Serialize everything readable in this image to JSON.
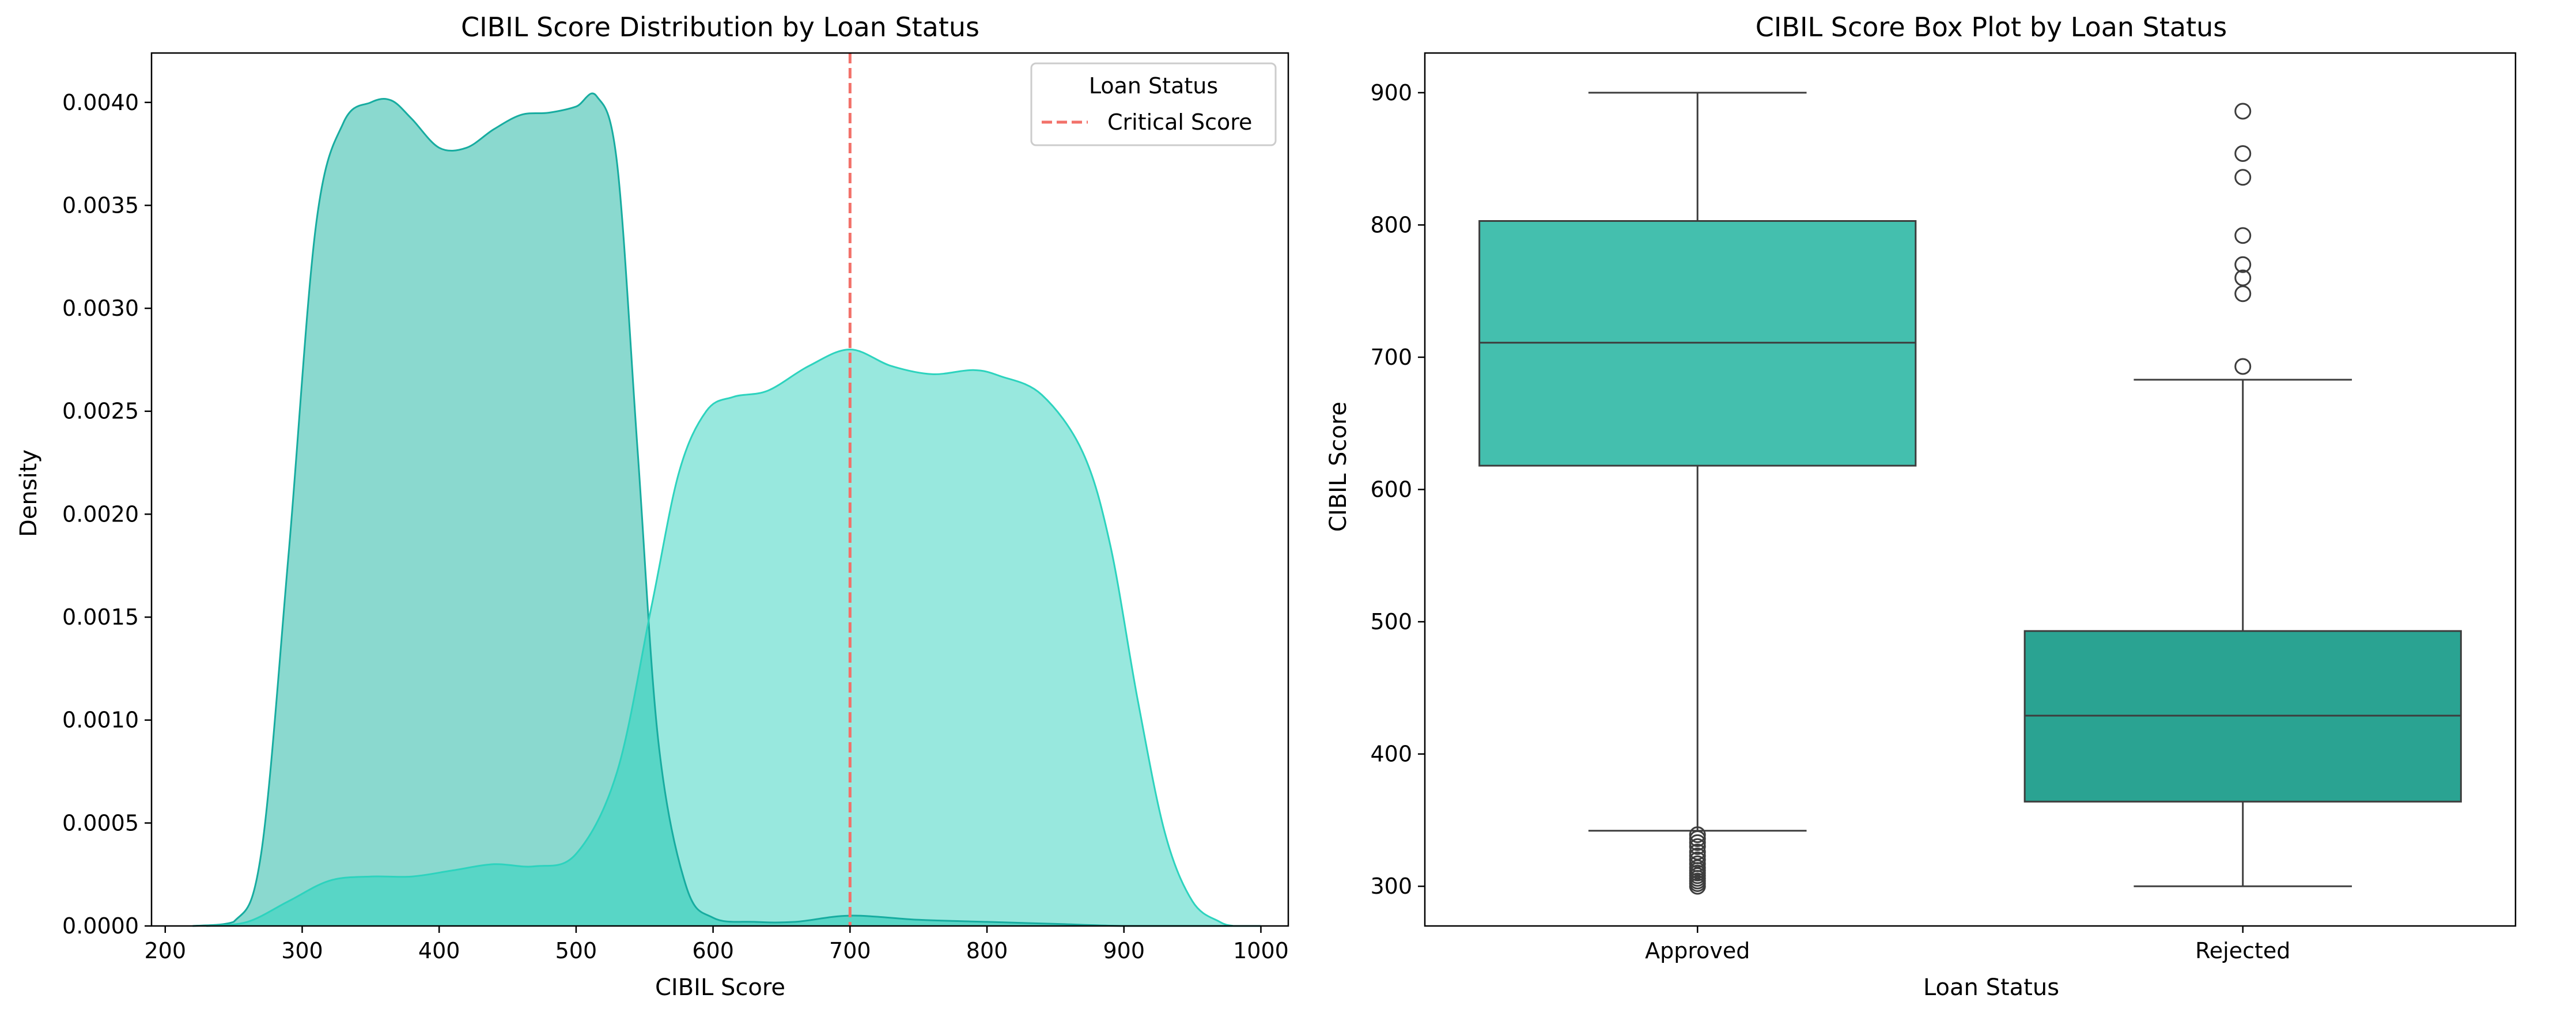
{
  "chart_data": [
    {
      "type": "area",
      "title": "CIBIL Score Distribution by Loan Status",
      "xlabel": "CIBIL Score",
      "ylabel": "Density",
      "xlim": [
        190,
        1020
      ],
      "ylim": [
        0,
        0.00424
      ],
      "xticks": [
        200,
        300,
        400,
        500,
        600,
        700,
        800,
        900,
        1000
      ],
      "yticks": [
        0.0,
        0.0005,
        0.001,
        0.0015,
        0.002,
        0.0025,
        0.003,
        0.0035,
        0.004
      ],
      "ytick_labels": [
        "0.0000",
        "0.0005",
        "0.0010",
        "0.0015",
        "0.0020",
        "0.0025",
        "0.0030",
        "0.0035",
        "0.0040"
      ],
      "series": [
        {
          "fill": "#8ad9cf",
          "line": "#17aca0",
          "x": [
            220,
            250,
            270,
            290,
            310,
            330,
            350,
            365,
            380,
            400,
            420,
            440,
            460,
            480,
            500,
            515,
            530,
            545,
            560,
            580,
            600,
            630,
            660,
            700,
            750,
            800,
            850,
            900,
            950,
            1000
          ],
          "y": [
            0.0,
            2e-05,
            0.00035,
            0.0018,
            0.0034,
            0.0039,
            0.004,
            0.00401,
            0.00392,
            0.00378,
            0.00378,
            0.00387,
            0.00394,
            0.00395,
            0.00398,
            0.00403,
            0.0037,
            0.0023,
            0.0009,
            0.0002,
            4e-05,
            2e-05,
            2e-05,
            5e-05,
            3e-05,
            2e-05,
            1e-05,
            0.0,
            0.0,
            0.0
          ]
        },
        {
          "fill": "#98e8de",
          "line": "#2dd3be",
          "x": [
            230,
            260,
            290,
            320,
            350,
            380,
            410,
            440,
            470,
            500,
            530,
            555,
            575,
            595,
            615,
            640,
            670,
            700,
            730,
            760,
            790,
            810,
            840,
            870,
            890,
            910,
            930,
            950,
            970,
            980
          ],
          "y": [
            0.0,
            2e-05,
            0.00012,
            0.00022,
            0.00024,
            0.00024,
            0.00027,
            0.0003,
            0.00029,
            0.00035,
            0.00075,
            0.00155,
            0.0022,
            0.0025,
            0.00257,
            0.0026,
            0.00272,
            0.0028,
            0.00272,
            0.00268,
            0.0027,
            0.00267,
            0.00258,
            0.0023,
            0.00185,
            0.0011,
            0.00045,
            0.00012,
            2e-05,
            0.0
          ]
        }
      ],
      "overlap_fill": "#58d6c6",
      "reference_line": {
        "x": 700,
        "color": "#f2716a",
        "label": "Critical Score"
      },
      "legend": {
        "title": "Loan Status",
        "position": "top-right",
        "entries": [
          "Critical Score"
        ]
      }
    },
    {
      "type": "box",
      "title": "CIBIL Score Box Plot by Loan Status",
      "xlabel": "Loan Status",
      "ylabel": "CIBIL Score",
      "ylim": [
        270,
        930
      ],
      "yticks": [
        300,
        400,
        500,
        600,
        700,
        800,
        900
      ],
      "categories": [
        "Approved",
        "Rejected"
      ],
      "boxes": [
        {
          "category": "Approved",
          "whisker_low": 342,
          "q1": 618,
          "median": 711,
          "q3": 803,
          "whisker_high": 900,
          "outliers": [
            300,
            302,
            304,
            306,
            308,
            310,
            312,
            314,
            317,
            320,
            323,
            326,
            330,
            333,
            336,
            339
          ],
          "color": "#44bfae"
        },
        {
          "category": "Rejected",
          "whisker_low": 300,
          "q1": 364,
          "median": 429,
          "q3": 493,
          "whisker_high": 683,
          "outliers": [
            693,
            748,
            760,
            770,
            792,
            836,
            854,
            886
          ],
          "color": "#2aa392"
        }
      ]
    }
  ]
}
